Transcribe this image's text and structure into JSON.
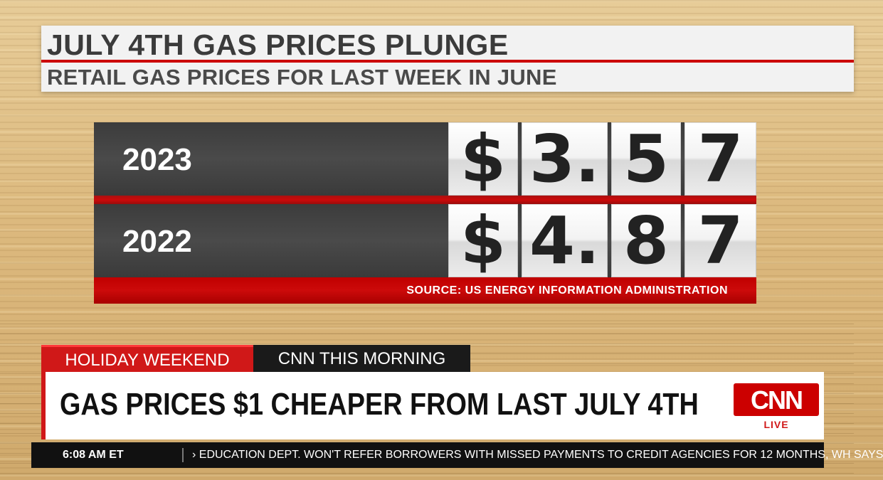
{
  "headline": {
    "title": "JULY 4TH GAS PRICES PLUNGE",
    "subtitle": "RETAIL GAS PRICES FOR LAST WEEK IN JUNE"
  },
  "board": {
    "rows": [
      {
        "year": "2023",
        "digits": [
          "$",
          "3.",
          "5",
          "7"
        ]
      },
      {
        "year": "2022",
        "digits": [
          "$",
          "4.",
          "8",
          "7"
        ]
      }
    ],
    "source": "SOURCE: US ENERGY INFORMATION ADMINISTRATION"
  },
  "lower_third": {
    "tag": "HOLIDAY WEEKEND",
    "show": "CNN THIS MORNING",
    "headline": "GAS PRICES $1 CHEAPER FROM LAST JULY 4TH",
    "logo": "CNN",
    "live": "LIVE"
  },
  "ticker": {
    "time": "6:08 AM ET",
    "news": "› EDUCATION DEPT. WON'T REFER BORROWERS WITH MISSED PAYMENTS TO CREDIT AGENCIES FOR 12 MONTHS, WH SAYS"
  },
  "colors": {
    "accent_red": "#d01818",
    "board_dark": "#444444",
    "panel_light": "#f2f2f2"
  }
}
